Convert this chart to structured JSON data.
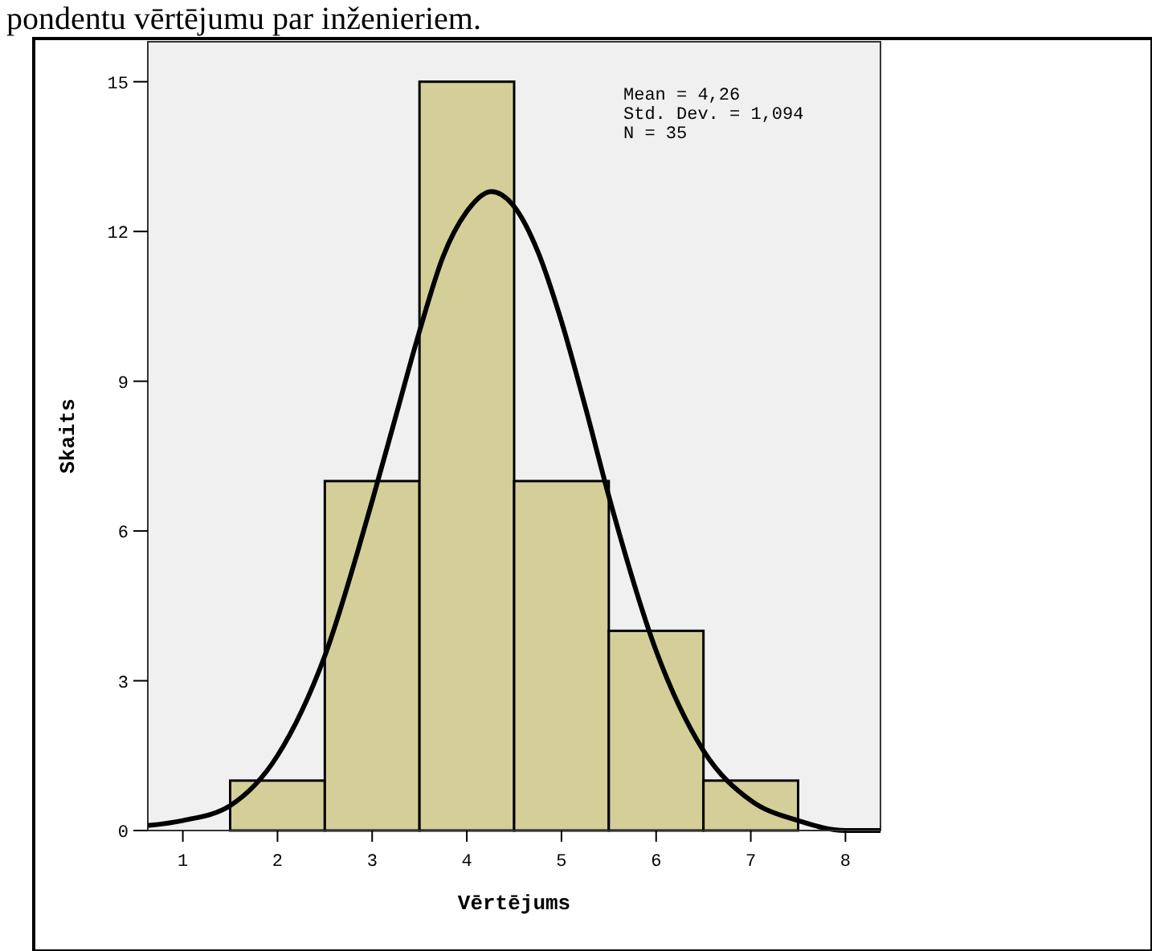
{
  "chart_data": {
    "type": "histogram",
    "xlabel": "Vērtējums",
    "ylabel": "Skaits",
    "annotations": [
      "pondentu vērtējumu par inženieriem.",
      "Mean = 4,26",
      "Std. Dev. = 1,094",
      "N = 35"
    ],
    "xlim": [
      0.63,
      8.37
    ],
    "xticks": [
      1,
      2,
      3,
      4,
      5,
      6,
      7,
      8
    ],
    "ylim": [
      0,
      15.8
    ],
    "yticks": [
      0,
      3,
      6,
      9,
      12,
      15
    ],
    "grid": false,
    "series": [
      {
        "color": "#d4cf98",
        "bins": [
          1.5,
          2.5,
          3.5,
          4.5,
          5.5,
          6.5,
          7.5
        ],
        "values": [
          1,
          7,
          15,
          7,
          4,
          1
        ]
      },
      {
        "type": "line",
        "color": "#000000",
        "x": [
          0.63,
          1,
          1.5,
          2,
          2.5,
          3,
          3.25,
          3.5,
          3.75,
          4,
          4.26,
          4.5,
          4.75,
          5,
          5.25,
          5.5,
          6,
          6.5,
          7,
          7.5,
          8,
          8.37
        ],
        "values": [
          0.1,
          0.2,
          0.5,
          1.5,
          3.5,
          6.6,
          8.3,
          10.0,
          11.5,
          12.4,
          12.8,
          12.5,
          11.6,
          10.2,
          8.5,
          6.7,
          3.6,
          1.6,
          0.6,
          0.2,
          0.0,
          0.0
        ]
      }
    ]
  }
}
